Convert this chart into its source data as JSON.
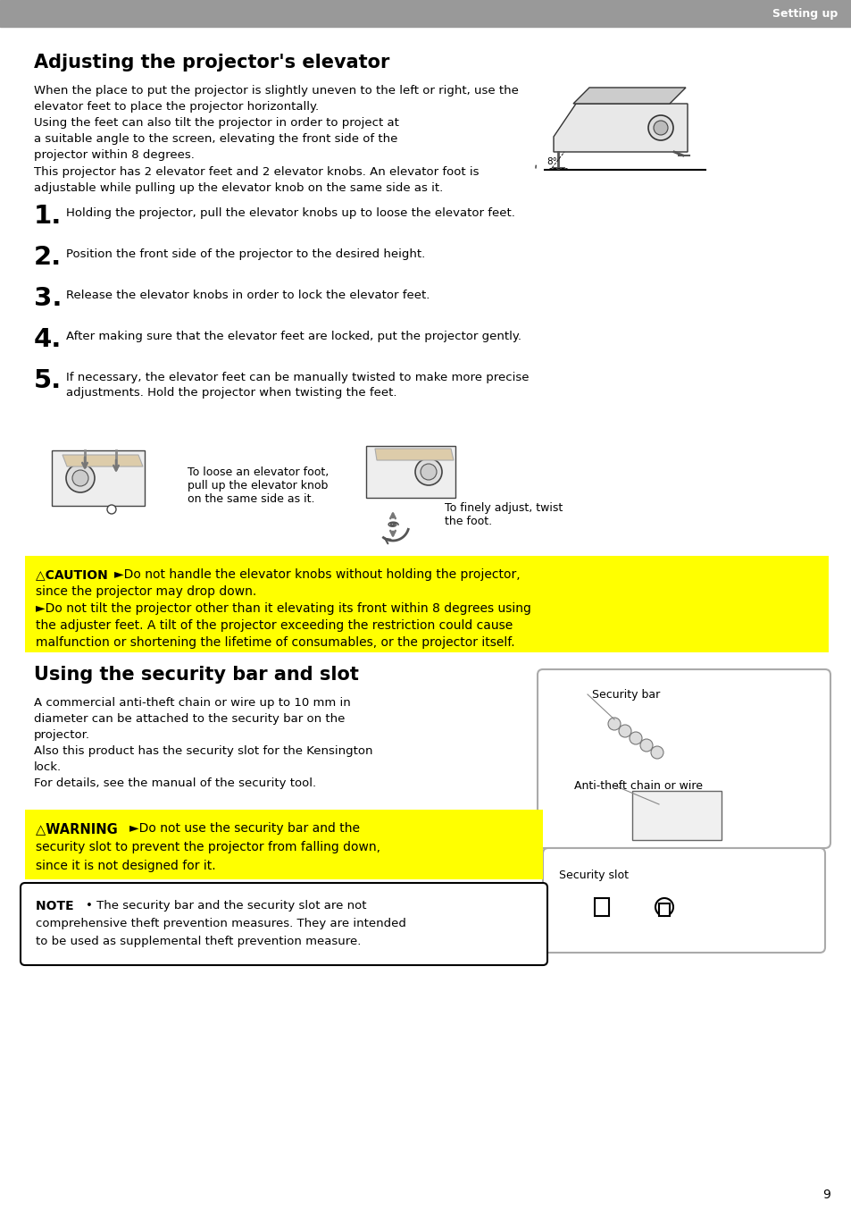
{
  "page_bg": "#ffffff",
  "header_bar_color": "#999999",
  "header_text": "Setting up",
  "header_text_color": "#ffffff",
  "title1": "Adjusting the projector's elevator",
  "title1_color": "#000000",
  "body_text_color": "#000000",
  "steps": [
    "Holding the projector, pull the elevator knobs up to loose the elevator feet.",
    "Position the front side of the projector to the desired height.",
    "Release the elevator knobs in order to lock the elevator feet.",
    "After making sure that the elevator feet are locked, put the projector gently.",
    "If necessary, the elevator feet can be manually twisted to make more precise\nadjustments. Hold the projector when twisting the feet."
  ],
  "img1_caption1": "To loose an elevator foot,\npull up the elevator knob\non the same side as it.",
  "img2_caption2": "To finely adjust, twist\nthe foot.",
  "caution_bg": "#ffff00",
  "caution_title": "△CAUTION",
  "caution_line1": "►Do not handle the elevator knobs without holding the projector,",
  "caution_line2": "since the projector may drop down.",
  "caution_line3": "►Do not tilt the projector other than it elevating its front within 8 degrees using",
  "caution_line4": "the adjuster feet. A tilt of the projector exceeding the restriction could cause",
  "caution_line5": "malfunction or shortening the lifetime of consumables, or the projector itself.",
  "title2": "Using the security bar and slot",
  "sec_line1": "A commercial anti-theft chain or wire up to 10 mm in",
  "sec_line2": "diameter can be attached to the security bar on the",
  "sec_line3": "projector.",
  "sec_line4": "Also this product has the security slot for the Kensington",
  "sec_line5": "lock.",
  "sec_line6": "For details, see the manual of the security tool.",
  "warning_bg": "#ffff00",
  "warning_title": "△WARNING",
  "warning_line1": "►Do not use the security bar and the",
  "warning_line2": "security slot to prevent the projector from falling down,",
  "warning_line3": "since it is not designed for it.",
  "note_title": "NOTE",
  "note_line1": "• The security bar and the security slot are not",
  "note_line2": "comprehensive theft prevention measures. They are intended",
  "note_line3": "to be used as supplemental theft prevention measure.",
  "security_bar_label": "Security bar",
  "antitheft_label": "Anti-theft chain or wire",
  "security_slot_label": "Security slot",
  "page_number": "9"
}
